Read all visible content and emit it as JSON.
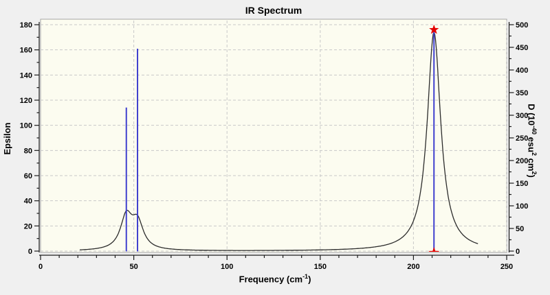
{
  "window": {
    "background": "#f0f0f0"
  },
  "chart_data": {
    "type": "line",
    "title": "IR Spectrum",
    "x_axis": {
      "label": "Frequency (cm-1)",
      "label_parts": {
        "main": "Frequency (cm",
        "sup": "-1",
        "close": ")"
      },
      "min": 0,
      "max": 250,
      "major_tick_step": 50,
      "minor_tick_step": 10,
      "tick_labels": [
        "0",
        "50",
        "100",
        "150",
        "200",
        "250"
      ]
    },
    "y_axis_left": {
      "label": "Epsilon",
      "min": 0,
      "max": 180,
      "major_tick_step": 20,
      "minor_tick_step": 10,
      "tick_labels": [
        "0",
        "20",
        "40",
        "60",
        "80",
        "100",
        "120",
        "140",
        "160",
        "180"
      ]
    },
    "y_axis_right": {
      "label": "D (10-40 esu2 cm2)",
      "label_parts": {
        "p1": "D (10",
        "s1": "-40",
        "p2": " esu",
        "s2": "2",
        "p3": " cm",
        "s3": "2",
        "p4": ")"
      },
      "min": 0,
      "max": 500,
      "major_tick_step": 50,
      "minor_tick_step": 25,
      "tick_labels": [
        "0",
        "50",
        "100",
        "150",
        "200",
        "250",
        "300",
        "350",
        "400",
        "450",
        "500"
      ]
    },
    "sticks": [
      {
        "frequency": 46,
        "d_value": 317,
        "selected": false
      },
      {
        "frequency": 52,
        "d_value": 447,
        "selected": false
      },
      {
        "frequency": 211,
        "d_value": 489,
        "selected": true,
        "marker": "red-star"
      }
    ],
    "curve": {
      "model": "lorentzian_sum",
      "range": [
        21,
        235
      ],
      "peaks": [
        {
          "center": 46,
          "height_epsilon": 26,
          "hwhm": 3.8
        },
        {
          "center": 52,
          "height_epsilon": 21,
          "hwhm": 3.8
        },
        {
          "center": 211,
          "height_epsilon": 174,
          "hwhm": 4.4
        }
      ]
    },
    "grid": {
      "horizontal_step_left_units": 20,
      "vertical_step_x_units": 50,
      "style": "dashed"
    },
    "colors": {
      "plot_background": "#fcfcf0",
      "grid": "#c8c8c8",
      "axis": "#1a1a1a",
      "curve": "#2b2b2b",
      "stick": "#3f3fce",
      "marker": "#e30000",
      "text": "#000000"
    }
  }
}
